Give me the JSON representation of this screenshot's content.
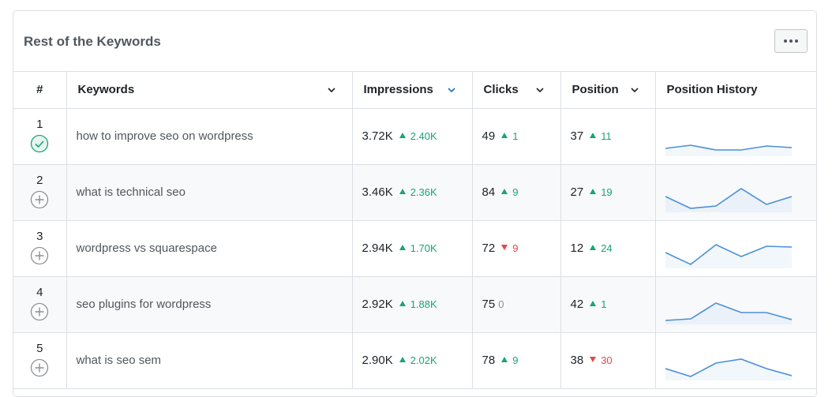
{
  "card": {
    "title": "Rest of the Keywords",
    "menu_icon": "ellipsis-icon"
  },
  "columns": {
    "num": "#",
    "keywords": "Keywords",
    "impressions": "Impressions",
    "clicks": "Clicks",
    "position": "Position",
    "history": "Position History"
  },
  "colors": {
    "up": "#1aa37a",
    "down": "#e04a4a",
    "sparkline": "#4a90d9",
    "sorted_chevron": "#2271b1"
  },
  "rows": [
    {
      "num": "1",
      "status": "check-circle-icon",
      "keyword": "how to improve seo on wordpress",
      "impressions": "3.72K",
      "impressions_delta": "2.40K",
      "impressions_dir": "up",
      "clicks": "49",
      "clicks_delta": "1",
      "clicks_dir": "up",
      "position": "37",
      "position_delta": "11",
      "position_dir": "up",
      "history": [
        40,
        36,
        42,
        42,
        37,
        39
      ]
    },
    {
      "num": "2",
      "status": "plus-circle-icon",
      "keyword": "what is technical seo",
      "impressions": "3.46K",
      "impressions_delta": "2.36K",
      "impressions_dir": "up",
      "clicks": "84",
      "clicks_delta": "9",
      "clicks_dir": "up",
      "position": "27",
      "position_delta": "19",
      "position_dir": "up",
      "history": [
        30,
        45,
        42,
        20,
        40,
        30
      ]
    },
    {
      "num": "3",
      "status": "plus-circle-icon",
      "keyword": "wordpress vs squarespace",
      "impressions": "2.94K",
      "impressions_delta": "1.70K",
      "impressions_dir": "up",
      "clicks": "72",
      "clicks_delta": "9",
      "clicks_dir": "down",
      "position": "12",
      "position_delta": "24",
      "position_dir": "up",
      "history": [
        30,
        45,
        20,
        35,
        22,
        23
      ]
    },
    {
      "num": "4",
      "status": "plus-circle-icon",
      "keyword": "seo plugins for wordpress",
      "impressions": "2.92K",
      "impressions_delta": "1.88K",
      "impressions_dir": "up",
      "clicks": "75",
      "clicks_delta": "0",
      "clicks_dir": "neutral",
      "position": "42",
      "position_delta": "1",
      "position_dir": "up",
      "history": [
        45,
        43,
        23,
        35,
        35,
        44
      ]
    },
    {
      "num": "5",
      "status": "plus-circle-icon",
      "keyword": "what is seo sem",
      "impressions": "2.90K",
      "impressions_delta": "2.02K",
      "impressions_dir": "up",
      "clicks": "78",
      "clicks_delta": "9",
      "clicks_dir": "up",
      "position": "38",
      "position_delta": "30",
      "position_dir": "down",
      "history": [
        35,
        45,
        28,
        23,
        35,
        44
      ]
    }
  ]
}
